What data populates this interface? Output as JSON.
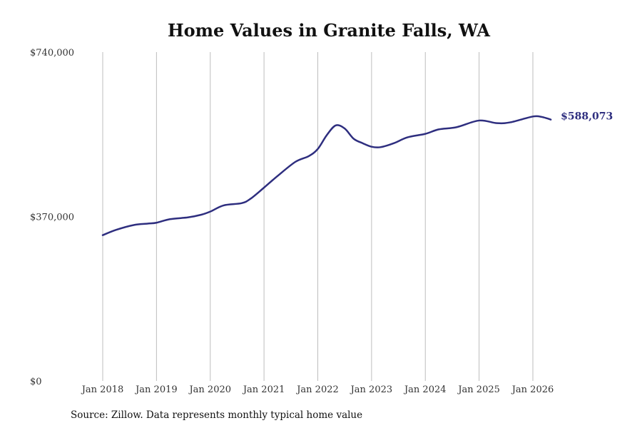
{
  "chart_data": {
    "type": "line",
    "title": "Home Values in Granite Falls, WA",
    "xlabel": "",
    "ylabel": "",
    "ylim": [
      0,
      740000
    ],
    "y_ticks": [
      0,
      370000,
      740000
    ],
    "y_tick_labels": [
      "$0",
      "$370,000",
      "$740,000"
    ],
    "x_ticks": [
      "2018-01",
      "2019-01",
      "2020-01",
      "2021-01",
      "2022-01",
      "2023-01",
      "2024-01",
      "2025-01",
      "2026-01"
    ],
    "x_tick_labels": [
      "Jan 2018",
      "Jan 2019",
      "Jan 2020",
      "Jan 2021",
      "Jan 2022",
      "Jan 2023",
      "Jan 2024",
      "Jan 2025",
      "Jan 2026"
    ],
    "grid": "vertical",
    "series_color": "#2e2e7f",
    "end_label": "$588,073",
    "series": [
      {
        "name": "",
        "points": [
          [
            "2018-01",
            328000
          ],
          [
            "2018-04",
            340000
          ],
          [
            "2018-08",
            351000
          ],
          [
            "2018-11",
            354000
          ],
          [
            "2019-01",
            356000
          ],
          [
            "2019-04",
            364000
          ],
          [
            "2019-08",
            368000
          ],
          [
            "2019-11",
            374000
          ],
          [
            "2020-01",
            381000
          ],
          [
            "2020-04",
            395000
          ],
          [
            "2020-08",
            400000
          ],
          [
            "2020-10",
            410000
          ],
          [
            "2021-01",
            435000
          ],
          [
            "2021-04",
            461000
          ],
          [
            "2021-08",
            493000
          ],
          [
            "2021-11",
            506000
          ],
          [
            "2022-01",
            522000
          ],
          [
            "2022-03",
            553000
          ],
          [
            "2022-05",
            575000
          ],
          [
            "2022-07",
            568000
          ],
          [
            "2022-09",
            545000
          ],
          [
            "2022-11",
            535000
          ],
          [
            "2023-01",
            527000
          ],
          [
            "2023-03",
            526000
          ],
          [
            "2023-06",
            535000
          ],
          [
            "2023-09",
            548000
          ],
          [
            "2024-01",
            556000
          ],
          [
            "2024-04",
            566000
          ],
          [
            "2024-08",
            571000
          ],
          [
            "2025-01",
            586000
          ],
          [
            "2025-05",
            580000
          ],
          [
            "2025-08",
            582000
          ],
          [
            "2026-01",
            595000
          ],
          [
            "2026-03",
            594000
          ],
          [
            "2026-05",
            588073
          ]
        ]
      }
    ]
  },
  "source_note": "Source: Zillow. Data represents monthly typical home value"
}
